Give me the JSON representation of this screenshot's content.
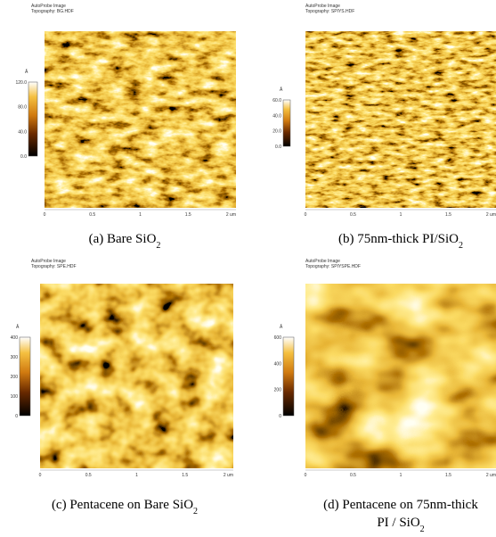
{
  "panels": [
    {
      "header": [
        "AutoProbe Image",
        "Topography: BG.HDF"
      ],
      "colorbar": {
        "unit": "Å",
        "ticks": [
          "120.0",
          "80.0",
          "40.0",
          "0.0"
        ]
      },
      "x_ticks": [
        "0",
        "0.5",
        "1",
        "1.5",
        "2 um"
      ],
      "caption": [
        {
          "text": "(a) Bare SiO",
          "sub": "2"
        }
      ]
    },
    {
      "header": [
        "AutoProbe Image",
        "Topography: SPIYS.HDF"
      ],
      "colorbar": {
        "unit": "Å",
        "ticks": [
          "60.0",
          "40.0",
          "20.0",
          "0.0"
        ]
      },
      "x_ticks": [
        "0",
        "0.5",
        "1",
        "1.5",
        "2 um"
      ],
      "caption": [
        {
          "text": "(b) 75nm-thick PI/SiO",
          "sub": "2"
        }
      ]
    },
    {
      "header": [
        "AutoProbe Image",
        "Topography: SPE.HDF"
      ],
      "colorbar": {
        "unit": "Å",
        "ticks": [
          "400",
          "300",
          "200",
          "100",
          "0"
        ]
      },
      "x_ticks": [
        "0",
        "0.5",
        "1",
        "1.5",
        "2 um"
      ],
      "caption": [
        {
          "text": "(c) Pentacene on Bare SiO",
          "sub": "2"
        }
      ]
    },
    {
      "header": [
        "AutoProbe Image",
        "Topography: SPIYSPE.HDF"
      ],
      "colorbar": {
        "unit": "Å",
        "ticks": [
          "600",
          "400",
          "200",
          "0"
        ]
      },
      "x_ticks": [
        "0",
        "0.5",
        "1",
        "1.5",
        "2 um"
      ],
      "caption": [
        {
          "text": "(d) Pentacene on 75nm-thick"
        },
        {
          "text": "PI / SiO",
          "sub": "2"
        }
      ]
    }
  ]
}
